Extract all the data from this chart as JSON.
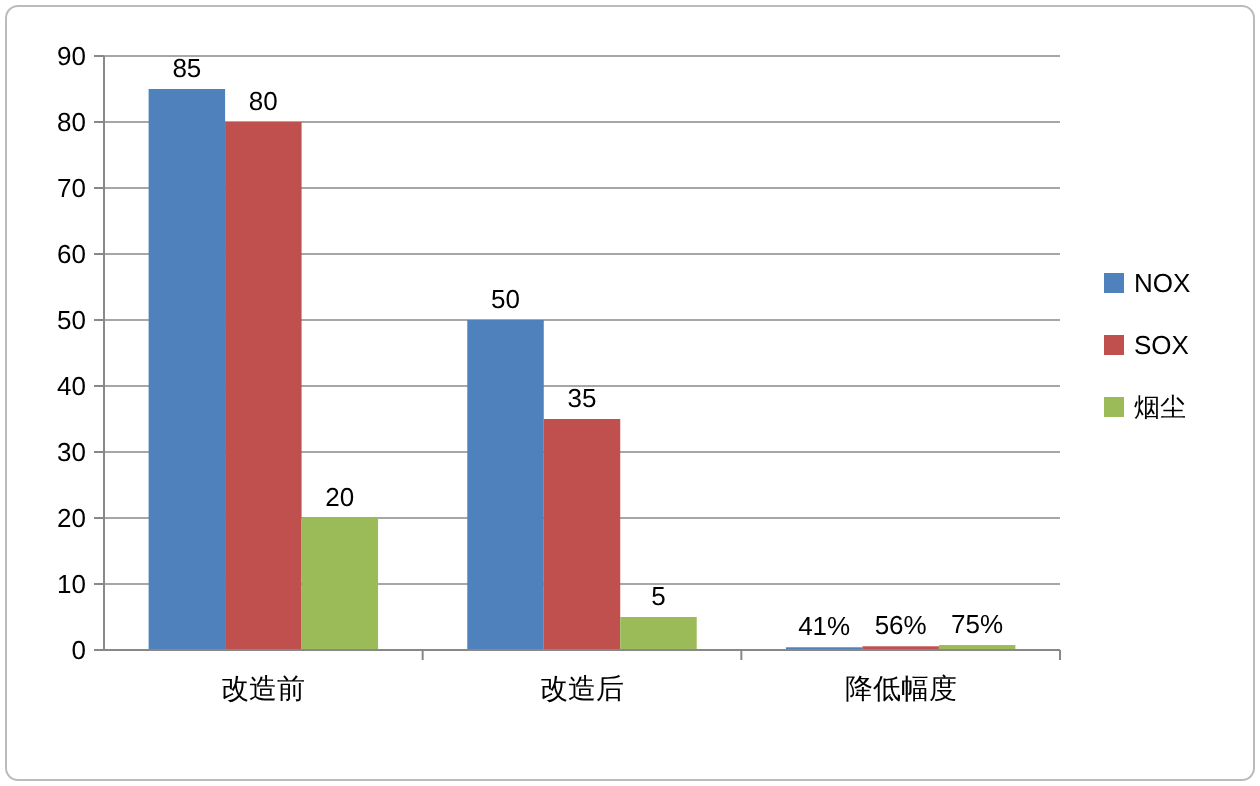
{
  "chart_data": {
    "type": "bar",
    "categories": [
      "改造前",
      "改造后",
      "降低幅度"
    ],
    "series": [
      {
        "name": "NOX",
        "color": "#4f81bd",
        "values": [
          85,
          50,
          0.41
        ],
        "value_labels": [
          "85",
          "50",
          "41%"
        ]
      },
      {
        "name": "SOX",
        "color": "#c0504d",
        "values": [
          80,
          35,
          0.56
        ],
        "value_labels": [
          "80",
          "35",
          "56%"
        ]
      },
      {
        "name": "烟尘",
        "color": "#9bbb59",
        "values": [
          20,
          5,
          0.75
        ],
        "value_labels": [
          "20",
          "5",
          "75%"
        ]
      }
    ],
    "ylim": [
      0,
      90
    ],
    "yticks": [
      0,
      10,
      20,
      30,
      40,
      50,
      60,
      70,
      80,
      90
    ],
    "grid": "y",
    "legend": "right"
  }
}
